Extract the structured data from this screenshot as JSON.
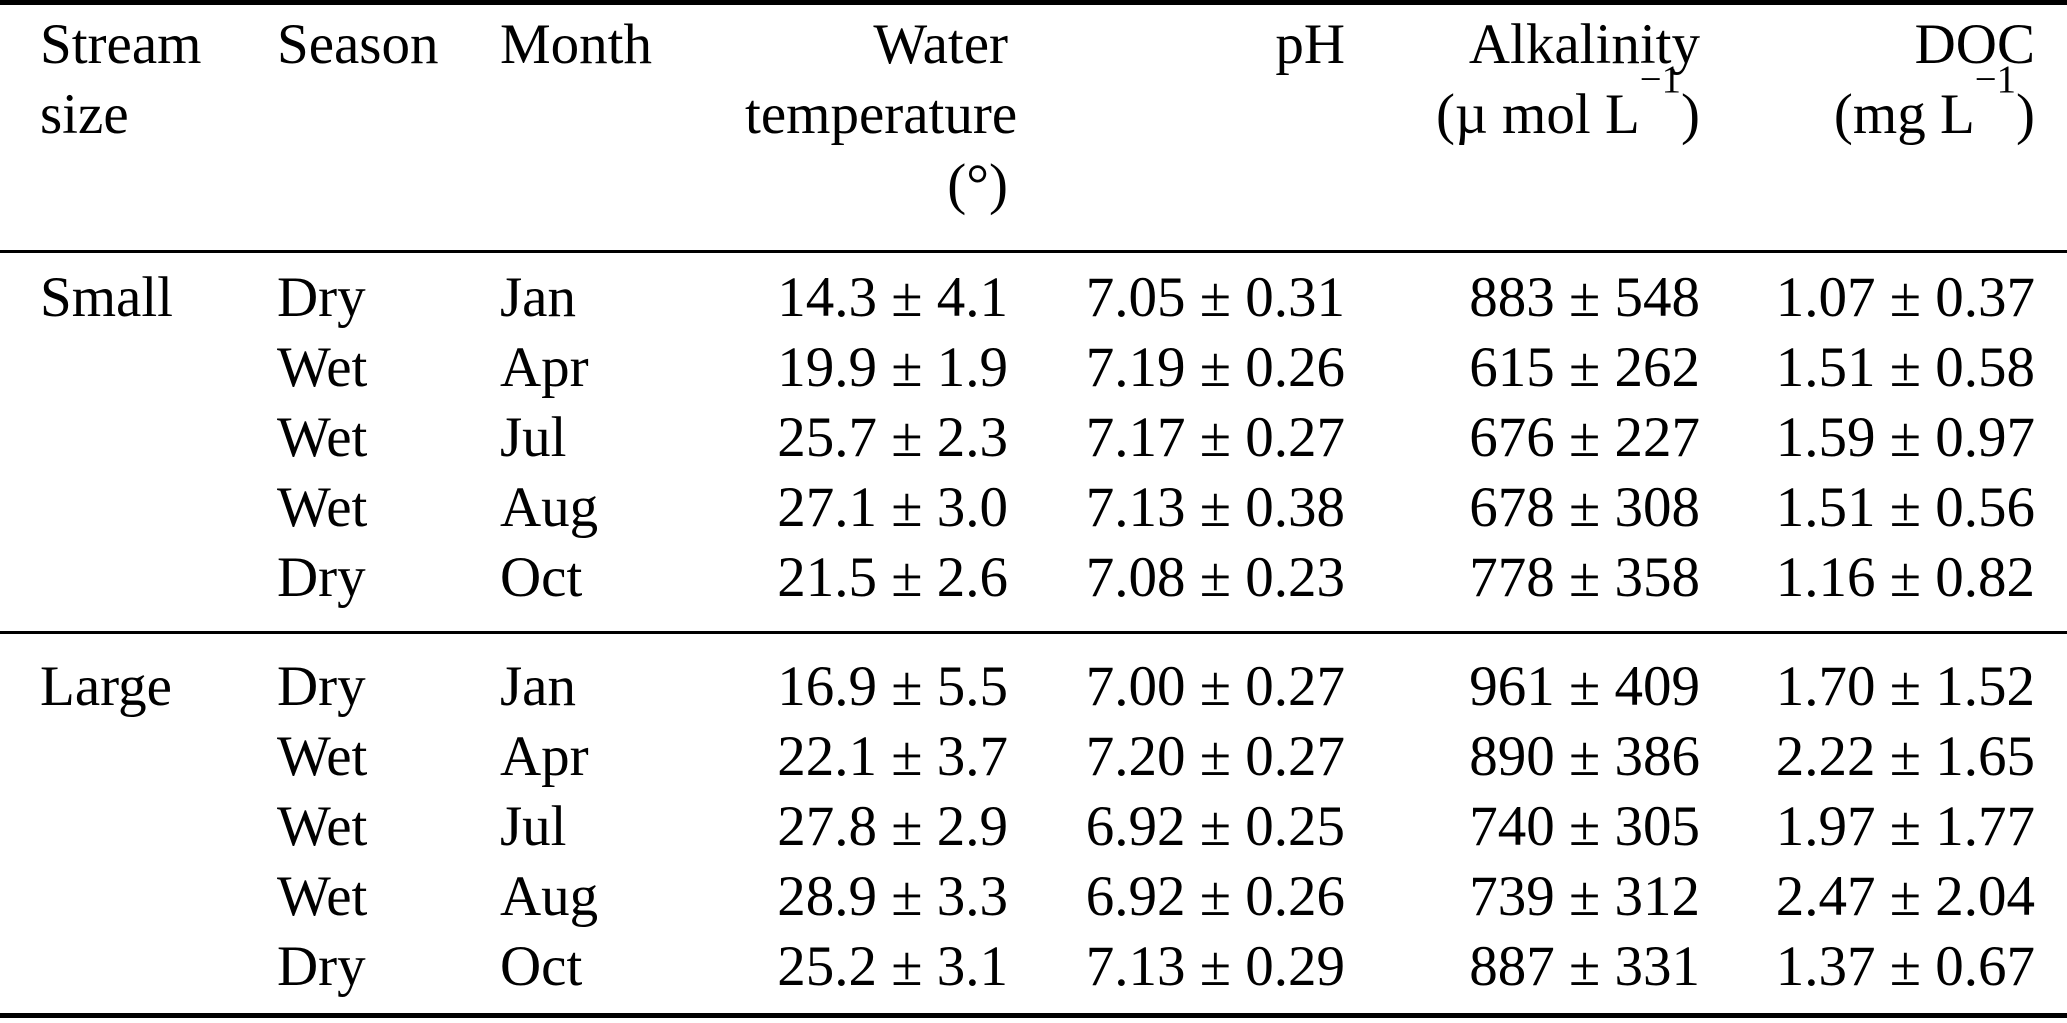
{
  "page": {
    "background_color": "#ffffff",
    "text_color": "#000000",
    "rule_color": "#000000"
  },
  "table": {
    "header": {
      "stream_size": "Stream\nsize",
      "season": "Season",
      "month": "Month",
      "water_temperature": "Water\ntemperature\n(°)",
      "ph": "pH",
      "alkalinity": {
        "name": "Alkalinity",
        "unit_pre": "(µ mol L",
        "unit_exp": "−1",
        "unit_post": ")"
      },
      "doc": {
        "name": "DOC",
        "unit_pre": "(mg L",
        "unit_exp": "−1",
        "unit_post": ")"
      }
    },
    "groups": [
      {
        "label": "Small",
        "rows": [
          {
            "season": "Dry",
            "month": "Jan",
            "water_temperature": "14.3 ± 4.1",
            "ph": "7.05 ± 0.31",
            "alkalinity": "883 ± 548",
            "doc": "1.07 ± 0.37"
          },
          {
            "season": "Wet",
            "month": "Apr",
            "water_temperature": "19.9 ± 1.9",
            "ph": "7.19 ± 0.26",
            "alkalinity": "615 ± 262",
            "doc": "1.51 ± 0.58"
          },
          {
            "season": "Wet",
            "month": "Jul",
            "water_temperature": "25.7 ± 2.3",
            "ph": "7.17 ± 0.27",
            "alkalinity": "676 ± 227",
            "doc": "1.59 ± 0.97"
          },
          {
            "season": "Wet",
            "month": "Aug",
            "water_temperature": "27.1 ± 3.0",
            "ph": "7.13 ± 0.38",
            "alkalinity": "678 ± 308",
            "doc": "1.51 ± 0.56"
          },
          {
            "season": "Dry",
            "month": "Oct",
            "water_temperature": "21.5 ± 2.6",
            "ph": "7.08 ± 0.23",
            "alkalinity": "778 ± 358",
            "doc": "1.16 ± 0.82"
          }
        ]
      },
      {
        "label": "Large",
        "rows": [
          {
            "season": "Dry",
            "month": "Jan",
            "water_temperature": "16.9 ± 5.5",
            "ph": "7.00 ± 0.27",
            "alkalinity": "961 ± 409",
            "doc": "1.70 ± 1.52"
          },
          {
            "season": "Wet",
            "month": "Apr",
            "water_temperature": "22.1 ± 3.7",
            "ph": "7.20 ± 0.27",
            "alkalinity": "890 ± 386",
            "doc": "2.22 ± 1.65"
          },
          {
            "season": "Wet",
            "month": "Jul",
            "water_temperature": "27.8 ± 2.9",
            "ph": "6.92 ± 0.25",
            "alkalinity": "740 ± 305",
            "doc": "1.97 ± 1.77"
          },
          {
            "season": "Wet",
            "month": "Aug",
            "water_temperature": "28.9 ± 3.3",
            "ph": "6.92 ± 0.26",
            "alkalinity": "739 ± 312",
            "doc": "2.47 ± 2.04"
          },
          {
            "season": "Dry",
            "month": "Oct",
            "water_temperature": "25.2 ± 3.1",
            "ph": "7.13 ± 0.29",
            "alkalinity": "887 ± 331",
            "doc": "1.37 ± 0.67"
          }
        ]
      }
    ]
  }
}
